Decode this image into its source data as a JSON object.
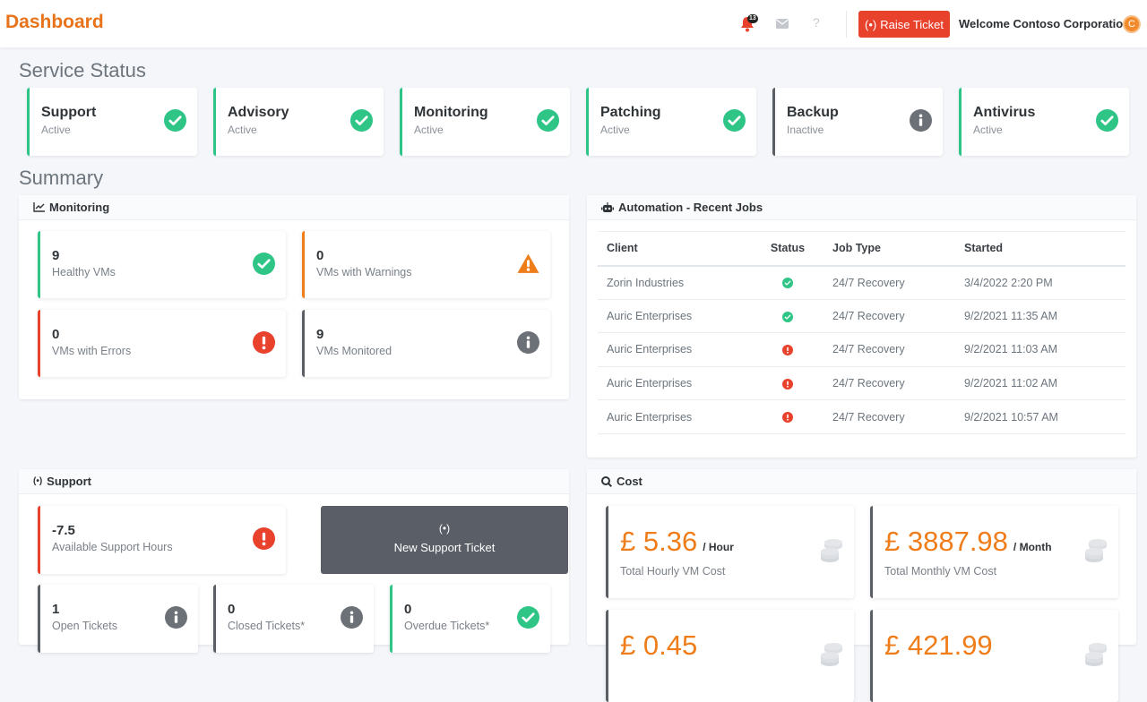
{
  "header": {
    "title": "Dashboard",
    "notification_count": "13",
    "raise_ticket_label": "Raise Ticket",
    "help_label": "?",
    "welcome_text": "Welcome Contoso Corporation",
    "avatar_initial": "C"
  },
  "service_status": {
    "title": "Service Status",
    "cards": [
      {
        "name": "Support",
        "status": "Active",
        "icon": "check-circle-icon"
      },
      {
        "name": "Advisory",
        "status": "Active",
        "icon": "check-circle-icon"
      },
      {
        "name": "Monitoring",
        "status": "Active",
        "icon": "check-circle-icon"
      },
      {
        "name": "Patching",
        "status": "Active",
        "icon": "check-circle-icon"
      },
      {
        "name": "Backup",
        "status": "Inactive",
        "icon": "info-circle-icon"
      },
      {
        "name": "Antivirus",
        "status": "Active",
        "icon": "check-circle-icon"
      }
    ]
  },
  "summary": {
    "title": "Summary",
    "monitoring": {
      "title": "Monitoring",
      "cards": [
        {
          "value": "9",
          "label": "Healthy VMs",
          "icon": "check-circle-icon"
        },
        {
          "value": "0",
          "label": "VMs with Warnings",
          "icon": "warning-triangle-icon"
        },
        {
          "value": "0",
          "label": "VMs with Errors",
          "icon": "error-circle-icon"
        },
        {
          "value": "9",
          "label": "VMs Monitored",
          "icon": "info-circle-icon"
        }
      ]
    },
    "automation": {
      "title": "Automation - Recent Jobs",
      "columns": [
        "Client",
        "Status",
        "Job Type",
        "Started"
      ],
      "rows": [
        {
          "client": "Zorin Industries",
          "status": "success",
          "job_type": "24/7 Recovery",
          "started": "3/4/2022 2:20 PM"
        },
        {
          "client": "Auric Enterprises",
          "status": "success",
          "job_type": "24/7 Recovery",
          "started": "9/2/2021 11:35 AM"
        },
        {
          "client": "Auric Enterprises",
          "status": "error",
          "job_type": "24/7 Recovery",
          "started": "9/2/2021 11:03 AM"
        },
        {
          "client": "Auric Enterprises",
          "status": "error",
          "job_type": "24/7 Recovery",
          "started": "9/2/2021 11:02 AM"
        },
        {
          "client": "Auric Enterprises",
          "status": "error",
          "job_type": "24/7 Recovery",
          "started": "9/2/2021 10:57 AM"
        }
      ]
    },
    "support": {
      "title": "Support",
      "hours": {
        "value": "-7.5",
        "label": "Available Support Hours",
        "icon": "error-circle-icon"
      },
      "new_ticket_label": "New Support Ticket",
      "tickets": [
        {
          "value": "1",
          "label": "Open Tickets",
          "icon": "info-circle-icon"
        },
        {
          "value": "0",
          "label": "Closed Tickets*",
          "icon": "info-circle-icon"
        },
        {
          "value": "0",
          "label": "Overdue Tickets*",
          "icon": "check-circle-icon"
        }
      ]
    },
    "cost": {
      "title": "Cost",
      "cards": [
        {
          "amount": "£ 5.36",
          "unit": "/ Hour",
          "label": "Total Hourly VM Cost"
        },
        {
          "amount": "£ 3887.98",
          "unit": "/ Month",
          "label": "Total Monthly VM Cost"
        },
        {
          "amount": "£ 0.45",
          "unit": "",
          "label": ""
        },
        {
          "amount": "£ 421.99",
          "unit": "",
          "label": ""
        }
      ]
    }
  },
  "colors": {
    "brand": "#e8731a",
    "success": "#2ec587",
    "warning": "#ee7d1a",
    "danger": "#e8412c",
    "neutral": "#5a5f66"
  }
}
